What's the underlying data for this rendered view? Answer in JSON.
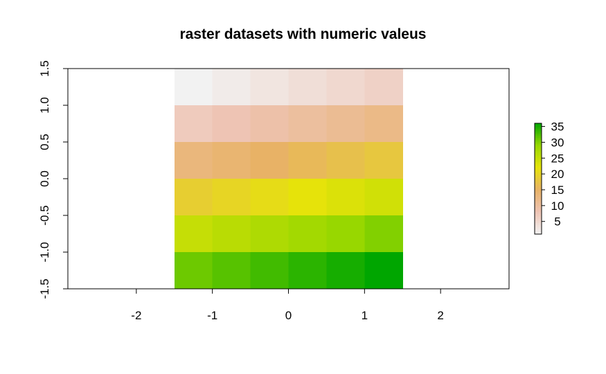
{
  "chart_data": {
    "type": "heatmap",
    "title": "raster datasets with numeric valeus",
    "xlabel": "",
    "ylabel": "",
    "xlim": [
      -2.9,
      2.9
    ],
    "ylim": [
      -1.5,
      1.5
    ],
    "x_ticks": [
      "-2",
      "-1",
      "0",
      "1",
      "2"
    ],
    "x_tick_values": [
      -2,
      -1,
      0,
      1,
      2
    ],
    "y_ticks": [
      "-1.5",
      "-1.0",
      "-0.5",
      "0.0",
      "0.5",
      "1.0",
      "1.5"
    ],
    "y_tick_values": [
      -1.5,
      -1.0,
      -0.5,
      0.0,
      0.5,
      1.0,
      1.5
    ],
    "grid": false,
    "raster": {
      "xmin": -1.5,
      "xmax": 1.5,
      "ymin": -1.5,
      "ymax": 1.5,
      "ncol": 6,
      "nrow": 6,
      "values": [
        [
          1,
          2,
          3,
          4,
          5,
          6
        ],
        [
          7,
          8,
          9,
          10,
          11,
          12
        ],
        [
          13,
          14,
          15,
          16,
          17,
          18
        ],
        [
          19,
          20,
          21,
          22,
          23,
          24
        ],
        [
          25,
          26,
          27,
          28,
          29,
          30
        ],
        [
          31,
          32,
          33,
          34,
          35,
          36
        ]
      ]
    },
    "legend": {
      "position": "right",
      "min": 1,
      "max": 36,
      "ticks": [
        "5",
        "10",
        "15",
        "20",
        "25",
        "30",
        "35"
      ],
      "tick_values": [
        5,
        10,
        15,
        20,
        25,
        30,
        35
      ]
    },
    "colormap": [
      "#f2f2f2",
      "#eec4b4",
      "#e8b266",
      "#e6e30a",
      "#98d700",
      "#00a600"
    ]
  }
}
